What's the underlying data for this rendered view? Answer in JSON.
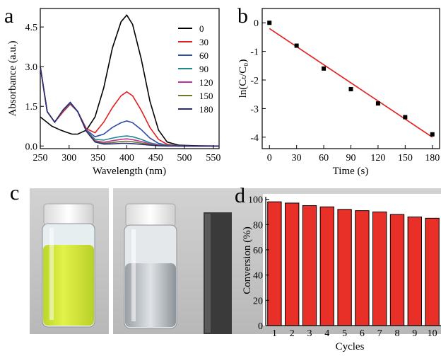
{
  "panel_labels": [
    "a",
    "b",
    "c",
    "d"
  ],
  "chart_data": [
    {
      "panel": "a",
      "type": "line",
      "xlabel": "Wavelength (nm)",
      "ylabel": "Absorbance (a.u.)",
      "xlim": [
        250,
        560
      ],
      "ylim": [
        -0.1,
        5.2
      ],
      "xticks": [
        250,
        300,
        350,
        400,
        450,
        500,
        550
      ],
      "yticks": [
        0.0,
        1.5,
        3.0,
        4.5
      ],
      "ytick_labels": [
        "0.0",
        "1.5",
        "3.0",
        "4.5"
      ],
      "legend_position": "top-right",
      "series": [
        {
          "name": "0",
          "color": "#000000",
          "x": [
            250,
            270,
            285,
            295,
            305,
            315,
            330,
            345,
            360,
            375,
            390,
            400,
            410,
            425,
            440,
            455,
            470,
            490,
            520,
            560
          ],
          "y": [
            1.1,
            0.75,
            0.6,
            0.52,
            0.45,
            0.45,
            0.6,
            1.1,
            2.2,
            3.7,
            4.7,
            4.95,
            4.6,
            3.3,
            1.7,
            0.6,
            0.15,
            0.03,
            0.01,
            0.0
          ]
        },
        {
          "name": "30",
          "color": "#e02020",
          "x": [
            250,
            262,
            275,
            290,
            302,
            315,
            330,
            345,
            360,
            375,
            390,
            400,
            410,
            425,
            440,
            455,
            470,
            490,
            520,
            560
          ],
          "y": [
            3.0,
            1.3,
            0.9,
            1.3,
            1.58,
            1.3,
            0.65,
            0.5,
            0.9,
            1.45,
            1.9,
            2.05,
            1.9,
            1.35,
            0.7,
            0.25,
            0.06,
            0.01,
            0.0,
            0.0
          ]
        },
        {
          "name": "60",
          "color": "#2c4da8",
          "x": [
            250,
            262,
            275,
            290,
            302,
            315,
            330,
            345,
            360,
            375,
            390,
            400,
            410,
            425,
            440,
            455,
            470,
            490,
            520,
            560
          ],
          "y": [
            3.0,
            1.3,
            0.9,
            1.35,
            1.6,
            1.3,
            0.6,
            0.35,
            0.45,
            0.7,
            0.88,
            0.95,
            0.88,
            0.62,
            0.3,
            0.1,
            0.03,
            0.01,
            0.0,
            0.0
          ]
        },
        {
          "name": "90",
          "color": "#1f8a8a",
          "x": [
            250,
            262,
            275,
            290,
            302,
            315,
            330,
            345,
            360,
            375,
            390,
            400,
            410,
            425,
            440,
            455,
            470,
            490,
            520,
            560
          ],
          "y": [
            3.0,
            1.3,
            0.9,
            1.35,
            1.62,
            1.3,
            0.58,
            0.25,
            0.22,
            0.3,
            0.36,
            0.38,
            0.35,
            0.25,
            0.12,
            0.05,
            0.02,
            0.0,
            0.0,
            0.0
          ]
        },
        {
          "name": "120",
          "color": "#c0329a",
          "x": [
            250,
            262,
            275,
            290,
            302,
            315,
            330,
            345,
            360,
            375,
            390,
            400,
            410,
            425,
            440,
            455,
            470,
            490,
            520,
            560
          ],
          "y": [
            3.0,
            1.3,
            0.9,
            1.36,
            1.63,
            1.3,
            0.57,
            0.2,
            0.14,
            0.2,
            0.25,
            0.27,
            0.24,
            0.17,
            0.08,
            0.03,
            0.01,
            0.0,
            0.0,
            0.0
          ]
        },
        {
          "name": "150",
          "color": "#6a7a2a",
          "x": [
            250,
            262,
            275,
            290,
            302,
            315,
            330,
            345,
            360,
            375,
            390,
            400,
            410,
            425,
            440,
            455,
            470,
            490,
            520,
            560
          ],
          "y": [
            3.0,
            1.3,
            0.9,
            1.37,
            1.64,
            1.3,
            0.56,
            0.18,
            0.1,
            0.13,
            0.17,
            0.18,
            0.16,
            0.11,
            0.05,
            0.02,
            0.01,
            0.0,
            0.0,
            0.0
          ]
        },
        {
          "name": "180",
          "color": "#2a2a7a",
          "x": [
            250,
            262,
            275,
            290,
            302,
            315,
            330,
            345,
            360,
            375,
            390,
            400,
            410,
            425,
            440,
            455,
            470,
            490,
            520,
            560
          ],
          "y": [
            3.0,
            1.3,
            0.9,
            1.38,
            1.65,
            1.3,
            0.55,
            0.15,
            0.07,
            0.08,
            0.1,
            0.1,
            0.09,
            0.06,
            0.03,
            0.01,
            0.0,
            0.0,
            0.0,
            0.0
          ]
        }
      ]
    },
    {
      "panel": "b",
      "type": "scatter",
      "xlabel": "Time (s)",
      "ylabel": "ln(Cₜ/C₀)",
      "xlim": [
        -8,
        188
      ],
      "ylim": [
        -4.4,
        0.5
      ],
      "xticks": [
        0,
        30,
        60,
        90,
        120,
        150,
        180
      ],
      "yticks": [
        0,
        -1,
        -2,
        -3,
        -4
      ],
      "points": {
        "x": [
          0,
          30,
          60,
          90,
          120,
          150,
          180
        ],
        "y": [
          0.0,
          -0.8,
          -1.6,
          -2.32,
          -2.82,
          -3.3,
          -3.9
        ]
      },
      "fit_line": {
        "x": [
          0,
          180
        ],
        "y": [
          -0.2,
          -4.0
        ],
        "color": "#e02020"
      }
    },
    {
      "panel": "d",
      "type": "bar",
      "xlabel": "Cycles",
      "ylabel": "Conversion (%)",
      "ylim": [
        0,
        102
      ],
      "yticks": [
        0,
        20,
        40,
        60,
        80,
        100
      ],
      "categories": [
        "1",
        "2",
        "3",
        "4",
        "5",
        "6",
        "7",
        "8",
        "9",
        "10"
      ],
      "values": [
        98,
        97,
        95,
        94,
        92,
        91,
        90,
        88,
        86,
        85
      ],
      "bar_color": "#e83028"
    }
  ],
  "photo_c": {
    "background": "#c9c9c9",
    "liquid_yellow": "#d6ec3a",
    "cap_color": "#f2f2f2",
    "magnet_color": "#3a3a3a"
  }
}
